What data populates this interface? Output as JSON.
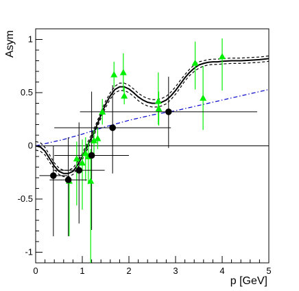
{
  "chart_data": {
    "type": "scatter",
    "xlabel": "p [GeV]",
    "ylabel": "Asym",
    "xlim": [
      0,
      5
    ],
    "ylim": [
      -1.1,
      1.1
    ],
    "x_ticks": [
      0,
      1,
      2,
      3,
      4,
      5
    ],
    "y_ticks": [
      -1,
      -0.5,
      0,
      0.5,
      1
    ],
    "grid": false,
    "legend": "none",
    "colors": {
      "green_points": "#00ee00",
      "black_points": "#000000",
      "blue_curve": "#0000cc",
      "fit_curve": "#000000",
      "zero_line": "#000000"
    },
    "reference_line_y": 0,
    "black_points": [
      {
        "x": 0.38,
        "y": -0.28,
        "xerr": 0.3,
        "yerr_low": 0.57,
        "yerr_high": 0.28
      },
      {
        "x": 0.7,
        "y": -0.32,
        "xerr": 0.4,
        "yerr_low": 0.53,
        "yerr_high": 0.4
      },
      {
        "x": 0.93,
        "y": -0.23,
        "xerr": 0.55,
        "yerr_low": 0.5,
        "yerr_high": 0.45
      },
      {
        "x": 1.2,
        "y": -0.09,
        "xerr": 0.8,
        "yerr_low": 0.7,
        "yerr_high": 0.6
      },
      {
        "x": 1.65,
        "y": 0.17,
        "xerr": 1.25,
        "yerr_low": 0.43,
        "yerr_high": 0.4
      },
      {
        "x": 2.85,
        "y": 0.32,
        "xerr": 1.9,
        "yerr_low": 0.34,
        "yerr_high": 0.33
      }
    ],
    "green_points": [
      {
        "x": 0.72,
        "y": -0.33,
        "xerr": 0.04,
        "yerr_low": 0.52,
        "yerr_high": 0.0
      },
      {
        "x": 0.88,
        "y": -0.12,
        "xerr": 0.04,
        "yerr_low": 0.44,
        "yerr_high": 0.16
      },
      {
        "x": 1.0,
        "y": -0.16,
        "xerr": 0.04,
        "yerr_low": 0.44,
        "yerr_high": 0.22
      },
      {
        "x": 1.07,
        "y": -0.07,
        "xerr": 0.04,
        "yerr_low": 0.26,
        "yerr_high": 0.15
      },
      {
        "x": 1.13,
        "y": -0.1,
        "xerr": 0.04,
        "yerr_low": 0.26,
        "yerr_high": 0.14
      },
      {
        "x": 1.18,
        "y": -0.33,
        "xerr": 0.04,
        "yerr_low": 0.8,
        "yerr_high": 0.3
      },
      {
        "x": 1.25,
        "y": 0.05,
        "xerr": 0.04,
        "yerr_low": 0.14,
        "yerr_high": 0.1
      },
      {
        "x": 1.33,
        "y": 0.07,
        "xerr": 0.04,
        "yerr_low": 0.1,
        "yerr_high": 0.1
      },
      {
        "x": 1.43,
        "y": 0.32,
        "xerr": 0.04,
        "yerr_low": 0.12,
        "yerr_high": 0.12
      },
      {
        "x": 1.68,
        "y": 0.67,
        "xerr": 0.04,
        "yerr_low": 0.12,
        "yerr_high": 0.12
      },
      {
        "x": 1.88,
        "y": 0.69,
        "xerr": 0.04,
        "yerr_low": 0.18,
        "yerr_high": 0.18
      },
      {
        "x": 1.9,
        "y": 0.47,
        "xerr": 0.04,
        "yerr_low": 0.08,
        "yerr_high": 0.08
      },
      {
        "x": 2.63,
        "y": 0.42,
        "xerr": 0.04,
        "yerr_low": 0.22,
        "yerr_high": 0.27
      },
      {
        "x": 2.64,
        "y": 0.35,
        "xerr": 0.04,
        "yerr_low": 0.16,
        "yerr_high": 0.16
      },
      {
        "x": 3.42,
        "y": 0.78,
        "xerr": 0.04,
        "yerr_low": 0.25,
        "yerr_high": 0.2
      },
      {
        "x": 3.59,
        "y": 0.45,
        "xerr": 0.04,
        "yerr_low": 0.3,
        "yerr_high": 0.3
      },
      {
        "x": 4.0,
        "y": 0.84,
        "xerr": 0.04,
        "yerr_low": 0.32,
        "yerr_high": 0.17
      }
    ],
    "blue_curve": {
      "style": "dash-dot",
      "x": [
        0,
        0.3,
        0.6,
        1.0,
        1.5,
        2.0,
        2.5,
        3.0,
        3.5,
        4.0,
        4.5,
        5.0
      ],
      "y": [
        0.0,
        0.03,
        0.06,
        0.11,
        0.18,
        0.24,
        0.29,
        0.33,
        0.38,
        0.43,
        0.48,
        0.53
      ]
    },
    "fit_curve": {
      "x": [
        0,
        0.1,
        0.2,
        0.3,
        0.4,
        0.5,
        0.6,
        0.7,
        0.8,
        0.9,
        1.0,
        1.1,
        1.2,
        1.3,
        1.4,
        1.5,
        1.6,
        1.7,
        1.8,
        1.9,
        2.0,
        2.1,
        2.2,
        2.3,
        2.4,
        2.5,
        2.6,
        2.7,
        2.8,
        2.9,
        3.0,
        3.1,
        3.2,
        3.3,
        3.4,
        3.5,
        3.6,
        3.7,
        3.8,
        3.9,
        4.0,
        4.2,
        4.4,
        4.6,
        4.8,
        5.0
      ],
      "y": [
        0.0,
        -0.01,
        -0.05,
        -0.12,
        -0.19,
        -0.24,
        -0.26,
        -0.26,
        -0.24,
        -0.18,
        -0.1,
        -0.01,
        0.08,
        0.18,
        0.29,
        0.39,
        0.47,
        0.53,
        0.555,
        0.555,
        0.535,
        0.5,
        0.46,
        0.43,
        0.41,
        0.4,
        0.4,
        0.41,
        0.43,
        0.47,
        0.52,
        0.58,
        0.64,
        0.69,
        0.73,
        0.76,
        0.775,
        0.785,
        0.79,
        0.79,
        0.795,
        0.8,
        0.8,
        0.805,
        0.81,
        0.82
      ]
    },
    "fit_band": {
      "style": "dashed",
      "halfwidth": [
        0.04,
        0.04,
        0.035,
        0.035,
        0.03,
        0.03,
        0.03,
        0.03,
        0.03,
        0.03,
        0.03,
        0.03,
        0.03,
        0.03,
        0.03,
        0.03,
        0.03,
        0.03,
        0.035,
        0.035,
        0.035,
        0.035,
        0.035,
        0.035,
        0.035,
        0.035,
        0.035,
        0.035,
        0.035,
        0.035,
        0.035,
        0.035,
        0.03,
        0.03,
        0.03,
        0.03,
        0.025,
        0.025,
        0.025,
        0.025,
        0.025,
        0.025,
        0.025,
        0.025,
        0.025,
        0.025
      ]
    }
  }
}
